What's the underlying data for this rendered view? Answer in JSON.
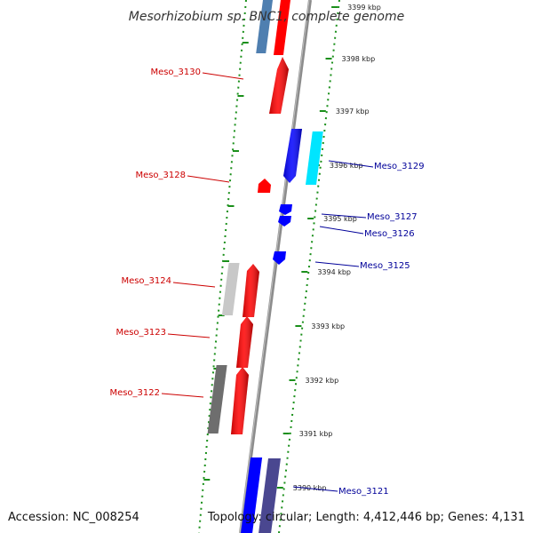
{
  "title": "Mesorhizobium sp. BNC1, complete genome",
  "accession": "Accession: NC_008254",
  "topology": "Topology: circular; Length: 4,412,446 bp; Genes: 4,131",
  "ticks": [
    "3399 kbp",
    "3398 kbp",
    "3397 kbp",
    "3396 kbp",
    "3395 kbp",
    "3394 kbp",
    "3393 kbp",
    "3392 kbp",
    "3391 kbp",
    "3390 kbp"
  ],
  "genes_left": [
    {
      "label": "Meso_3130",
      "color": "#cc0000"
    },
    {
      "label": "Meso_3128",
      "color": "#cc0000"
    },
    {
      "label": "Meso_3124",
      "color": "#cc0000"
    },
    {
      "label": "Meso_3123",
      "color": "#cc0000"
    },
    {
      "label": "Meso_3122",
      "color": "#cc0000"
    }
  ],
  "genes_right": [
    {
      "label": "Meso_3129",
      "color": "#000099"
    },
    {
      "label": "Meso_3127",
      "color": "#000099"
    },
    {
      "label": "Meso_3126",
      "color": "#000099"
    },
    {
      "label": "Meso_3125",
      "color": "#000099"
    },
    {
      "label": "Meso_3121",
      "color": "#000099"
    }
  ],
  "colors": {
    "forward_cds": "#ff0000",
    "reverse_cds": "#0000ff",
    "cyan_feature": "#00e5ff",
    "steel_feature": "#4f7fb0",
    "light_gray_feature": "#c8c8c8",
    "dark_gray_feature": "#6e6e6e",
    "slate_feature": "#4a4790",
    "backbone": "#8c8c8c",
    "tick_marks": "#1a8f1a"
  }
}
